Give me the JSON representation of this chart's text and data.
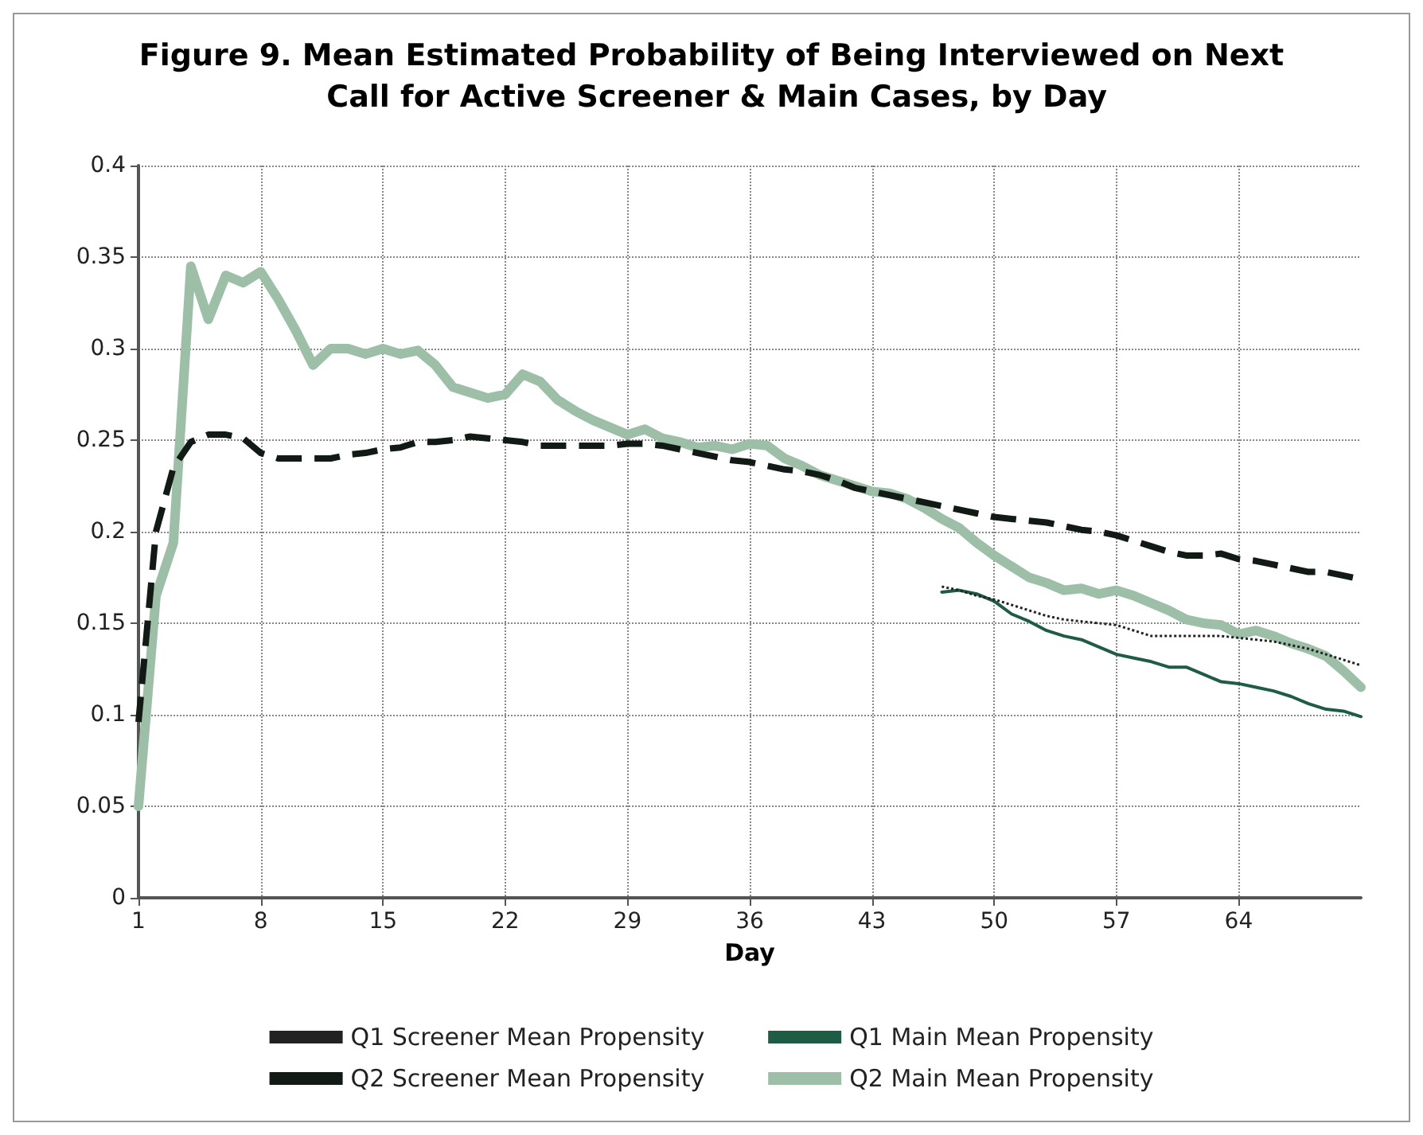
{
  "chart_data": {
    "type": "line",
    "title": "Figure 9. Mean Estimated Probability of Being Interviewed on Next Call for Active Screener & Main Cases, by Day",
    "xlabel": "Day",
    "x": [
      1,
      2,
      3,
      4,
      5,
      6,
      7,
      8,
      9,
      10,
      11,
      12,
      13,
      14,
      15,
      16,
      17,
      18,
      19,
      20,
      21,
      22,
      23,
      24,
      25,
      26,
      27,
      28,
      29,
      30,
      31,
      32,
      33,
      34,
      35,
      36,
      37,
      38,
      39,
      40,
      41,
      42,
      43,
      44,
      45,
      46,
      47,
      48,
      49,
      50,
      51,
      52,
      53,
      54,
      55,
      56,
      57,
      58,
      59,
      60,
      61,
      62,
      63,
      64,
      65,
      66,
      67,
      68,
      69,
      70,
      71
    ],
    "xlim": [
      1,
      71
    ],
    "xticks": [
      1,
      8,
      15,
      22,
      29,
      36,
      43,
      50,
      57,
      64
    ],
    "ylim": [
      0,
      0.4
    ],
    "yticks": [
      0,
      0.05,
      0.1,
      0.15,
      0.2,
      0.25,
      0.3,
      0.35,
      0.4
    ],
    "grid": true,
    "legend": "bottom",
    "marker": "none",
    "series": [
      {
        "name": "Q1 Screener Mean Propensity",
        "color": "#222222",
        "line_style": "dotted",
        "values": [
          null,
          null,
          null,
          null,
          null,
          null,
          null,
          null,
          null,
          null,
          null,
          null,
          null,
          null,
          null,
          null,
          null,
          null,
          null,
          null,
          null,
          null,
          null,
          null,
          null,
          null,
          null,
          null,
          null,
          null,
          null,
          null,
          null,
          null,
          null,
          null,
          null,
          null,
          null,
          null,
          null,
          null,
          null,
          null,
          null,
          null,
          0.17,
          0.168,
          0.165,
          0.163,
          0.16,
          0.157,
          0.154,
          0.152,
          0.151,
          0.15,
          0.149,
          0.146,
          0.143,
          0.143,
          0.143,
          0.143,
          0.143,
          0.142,
          0.141,
          0.14,
          0.138,
          0.136,
          0.133,
          0.13,
          0.127
        ]
      },
      {
        "name": "Q1 Main Mean Propensity",
        "color": "#1f5c45",
        "line_style": "solid",
        "values": [
          null,
          null,
          null,
          null,
          null,
          null,
          null,
          null,
          null,
          null,
          null,
          null,
          null,
          null,
          null,
          null,
          null,
          null,
          null,
          null,
          null,
          null,
          null,
          null,
          null,
          null,
          null,
          null,
          null,
          null,
          null,
          null,
          null,
          null,
          null,
          null,
          null,
          null,
          null,
          null,
          null,
          null,
          null,
          null,
          null,
          null,
          0.167,
          0.168,
          0.166,
          0.162,
          0.155,
          0.151,
          0.146,
          0.143,
          0.141,
          0.137,
          0.133,
          0.131,
          0.129,
          0.126,
          0.126,
          0.122,
          0.118,
          0.117,
          0.115,
          0.113,
          0.11,
          0.106,
          0.103,
          0.102,
          0.099
        ]
      },
      {
        "name": "Q2 Screener Mean Propensity",
        "color": "#111a14",
        "line_style": "dashed",
        "values": [
          0.096,
          0.2,
          0.235,
          0.249,
          0.253,
          0.253,
          0.251,
          0.243,
          0.24,
          0.24,
          0.24,
          0.24,
          0.242,
          0.243,
          0.245,
          0.246,
          0.249,
          0.249,
          0.25,
          0.252,
          0.251,
          0.25,
          0.249,
          0.247,
          0.247,
          0.247,
          0.247,
          0.247,
          0.248,
          0.248,
          0.247,
          0.245,
          0.243,
          0.241,
          0.239,
          0.238,
          0.236,
          0.234,
          0.233,
          0.231,
          0.228,
          0.224,
          0.222,
          0.22,
          0.218,
          0.216,
          0.214,
          0.212,
          0.21,
          0.208,
          0.207,
          0.206,
          0.205,
          0.203,
          0.201,
          0.2,
          0.198,
          0.195,
          0.192,
          0.189,
          0.187,
          0.187,
          0.188,
          0.185,
          0.184,
          0.182,
          0.18,
          0.178,
          0.178,
          0.176,
          0.174
        ]
      },
      {
        "name": "Q2 Main Mean Propensity",
        "color": "#9dbfa8",
        "line_style": "solid",
        "values": [
          0.05,
          0.165,
          0.194,
          0.345,
          0.316,
          0.34,
          0.336,
          0.342,
          0.327,
          0.31,
          0.291,
          0.3,
          0.3,
          0.297,
          0.3,
          0.297,
          0.299,
          0.291,
          0.279,
          0.276,
          0.273,
          0.275,
          0.286,
          0.282,
          0.272,
          0.266,
          0.261,
          0.257,
          0.253,
          0.256,
          0.251,
          0.249,
          0.246,
          0.247,
          0.245,
          0.248,
          0.247,
          0.24,
          0.236,
          0.231,
          0.228,
          0.225,
          0.222,
          0.221,
          0.218,
          0.213,
          0.207,
          0.202,
          0.194,
          0.187,
          0.181,
          0.175,
          0.172,
          0.168,
          0.169,
          0.166,
          0.168,
          0.165,
          0.161,
          0.157,
          0.152,
          0.15,
          0.149,
          0.144,
          0.146,
          0.143,
          0.139,
          0.136,
          0.132,
          0.124,
          0.115
        ]
      }
    ]
  }
}
